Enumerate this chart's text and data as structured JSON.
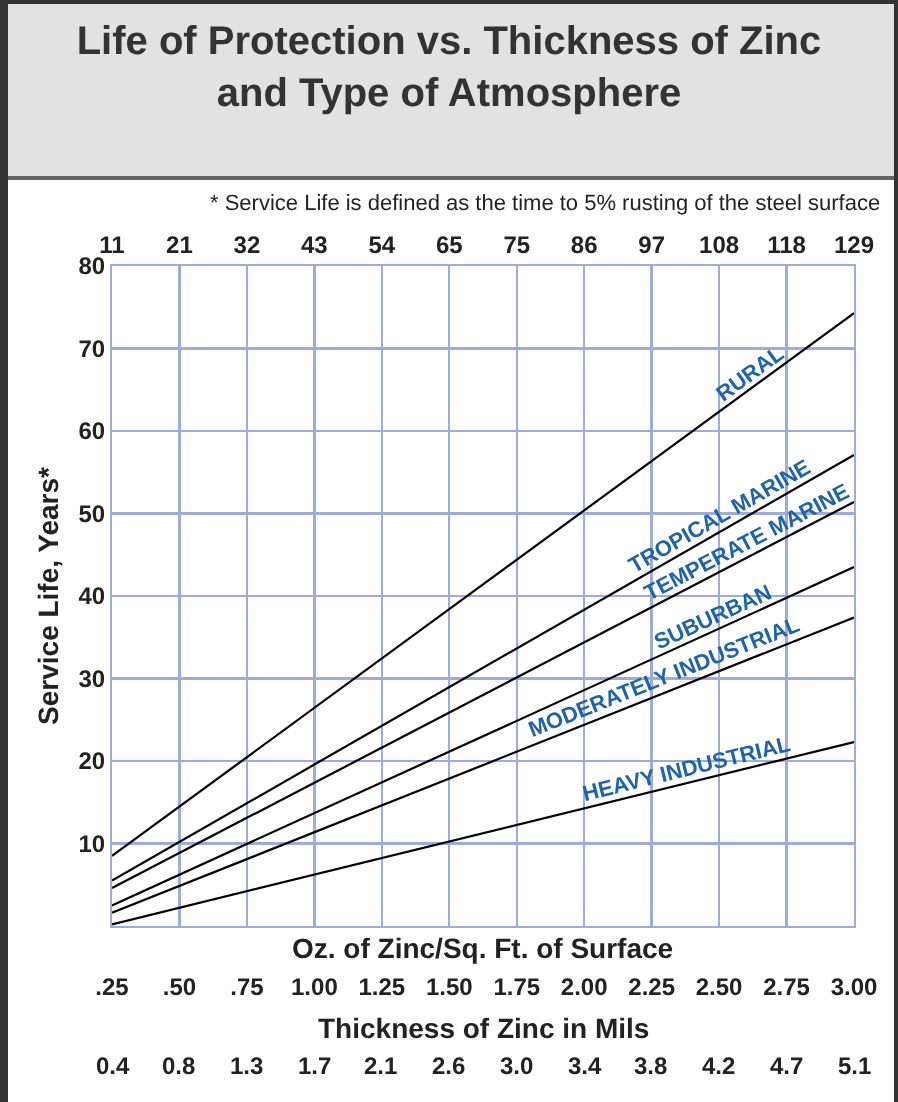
{
  "chart_data": {
    "type": "line",
    "title": "Life of Protection vs. Thickness of Zinc and Type of Atmosphere",
    "annotations": [
      "* Service Life is defined as the time to 5% rusting of the steel surface",
      "Thickness of Zinc in Mils",
      "0.4",
      "0.8",
      "1.3",
      "1.7",
      "2.1",
      "2.6",
      "3.0",
      "3.4",
      "3.8",
      "4.2",
      "4.7",
      "5.1"
    ],
    "xlabel": "Oz. of Zinc/Sq. Ft. of Surface",
    "ylabel": "Service Life, Years*",
    "x": [
      0.25,
      3.0
    ],
    "series": [
      {
        "name": "RURAL",
        "color": "#000000",
        "values": [
          8.5,
          74.3
        ]
      },
      {
        "name": "TROPICAL MARINE",
        "color": "#000000",
        "values": [
          5.5,
          57.1
        ]
      },
      {
        "name": "TEMPERATE MARINE",
        "color": "#000000",
        "values": [
          4.6,
          51.4
        ]
      },
      {
        "name": "SUBURBAN",
        "color": "#000000",
        "values": [
          2.5,
          43.5
        ]
      },
      {
        "name": "MODERATELY INDUSTRIAL",
        "color": "#000000",
        "values": [
          1.6,
          37.4
        ]
      },
      {
        "name": "HEAVY INDUSTRIAL",
        "color": "#000000",
        "values": [
          0.2,
          22.3
        ]
      }
    ],
    "xlim": [
      0.25,
      3.0
    ],
    "xticks": [
      {
        "value": 0.25,
        "label": ".25"
      },
      {
        "value": 0.5,
        "label": ".50"
      },
      {
        "value": 0.75,
        "label": ".75"
      },
      {
        "value": 1.0,
        "label": "1.00"
      },
      {
        "value": 1.25,
        "label": "1.25"
      },
      {
        "value": 1.5,
        "label": "1.50"
      },
      {
        "value": 1.75,
        "label": "1.75"
      },
      {
        "value": 2.0,
        "label": "2.00"
      },
      {
        "value": 2.25,
        "label": "2.25"
      },
      {
        "value": 2.5,
        "label": "2.50"
      },
      {
        "value": 2.75,
        "label": "2.75"
      },
      {
        "value": 3.0,
        "label": "3.00"
      }
    ],
    "x2lim": [
      10.75,
      129
    ],
    "x2ticks": [
      {
        "value": 10.75,
        "label": "11"
      },
      {
        "value": 21.5,
        "label": "21"
      },
      {
        "value": 32.25,
        "label": "32"
      },
      43,
      {
        "value": 53.75,
        "label": "54"
      },
      {
        "value": 64.5,
        "label": "65"
      },
      {
        "value": 75.25,
        "label": "75"
      },
      86,
      {
        "value": 96.75,
        "label": "97"
      },
      {
        "value": 107.5,
        "label": "108"
      },
      {
        "value": 118.25,
        "label": "118"
      },
      129
    ],
    "ylim": [
      0,
      80
    ],
    "yticks": [
      10,
      20,
      30,
      40,
      50,
      60,
      70,
      80
    ],
    "grid": true,
    "line_style": "solid"
  }
}
